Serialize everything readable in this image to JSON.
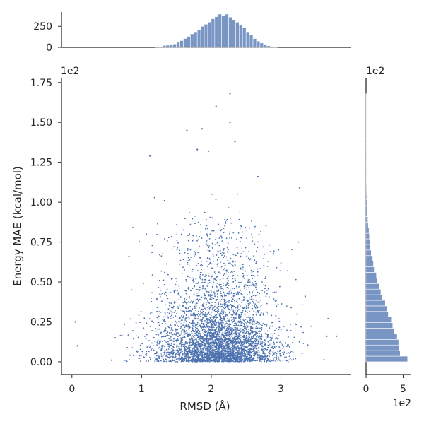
{
  "chart_data": {
    "type": "scatter",
    "subtype": "jointplot-with-marginal-histograms",
    "color": "#4c72b0",
    "xlabel": "RMSD (Å)",
    "ylabel": "Energy MAE (kcal/mol)",
    "xlim": [
      -0.15,
      4.0
    ],
    "ylim": [
      -0.08,
      1.78
    ],
    "y_scale_label": "1e2",
    "xticks": [
      {
        "value": 0,
        "label": "0"
      },
      {
        "value": 1,
        "label": "1"
      },
      {
        "value": 2,
        "label": "2"
      },
      {
        "value": 3,
        "label": "3"
      }
    ],
    "yticks": [
      {
        "value": 0.0,
        "label": "0.00"
      },
      {
        "value": 0.25,
        "label": "0.25"
      },
      {
        "value": 0.5,
        "label": "0.50"
      },
      {
        "value": 0.75,
        "label": "0.75"
      },
      {
        "value": 1.0,
        "label": "1.00"
      },
      {
        "value": 1.25,
        "label": "1.25"
      },
      {
        "value": 1.5,
        "label": "1.50"
      },
      {
        "value": 1.75,
        "label": "1.75"
      }
    ],
    "scatter_core": {
      "x_mean": 2.1,
      "x_std": 0.42,
      "y_typical_range": [
        0.0,
        0.5
      ],
      "approx_point_count": 4500
    },
    "outliers": [
      {
        "x": 0.05,
        "y": 0.25
      },
      {
        "x": 0.08,
        "y": 0.1
      },
      {
        "x": 0.82,
        "y": 0.66
      },
      {
        "x": 1.12,
        "y": 1.29
      },
      {
        "x": 1.65,
        "y": 1.45
      },
      {
        "x": 1.87,
        "y": 1.46
      },
      {
        "x": 2.07,
        "y": 1.6
      },
      {
        "x": 2.27,
        "y": 1.68
      },
      {
        "x": 2.27,
        "y": 1.5
      },
      {
        "x": 2.34,
        "y": 1.38
      },
      {
        "x": 1.8,
        "y": 1.33
      },
      {
        "x": 1.96,
        "y": 1.32
      },
      {
        "x": 3.27,
        "y": 1.09
      },
      {
        "x": 3.66,
        "y": 0.16
      },
      {
        "x": 3.8,
        "y": 0.16
      },
      {
        "x": 2.67,
        "y": 1.16
      },
      {
        "x": 1.33,
        "y": 1.01
      },
      {
        "x": 3.35,
        "y": 0.41
      },
      {
        "x": 0.57,
        "y": 0.01
      },
      {
        "x": 0.62,
        "y": 0.15
      }
    ],
    "top_hist": {
      "yticks": [
        {
          "value": 0,
          "label": "0"
        },
        {
          "value": 250,
          "label": "250"
        }
      ],
      "ylim": [
        0,
        420
      ],
      "bin_edges_start": 1.2,
      "bin_width": 0.05,
      "counts": [
        5,
        10,
        22,
        25,
        28,
        40,
        60,
        80,
        105,
        130,
        160,
        185,
        210,
        250,
        275,
        300,
        340,
        365,
        395,
        375,
        395,
        360,
        330,
        300,
        270,
        230,
        185,
        145,
        105,
        75,
        52,
        34,
        18,
        9,
        4
      ]
    },
    "right_hist": {
      "xticks": [
        {
          "value": 0,
          "label": "0"
        },
        {
          "value": 5,
          "label": "5"
        }
      ],
      "x_scale_label": "1e2",
      "xlim": [
        0,
        6.1
      ],
      "bin_edges_start": 0.0,
      "bin_width": 0.035,
      "counts": [
        5.6,
        4.6,
        4.5,
        4.4,
        4.2,
        3.8,
        3.6,
        3.5,
        3.0,
        2.8,
        2.6,
        2.2,
        2.0,
        1.8,
        1.5,
        1.4,
        1.1,
        1.0,
        0.9,
        0.7,
        0.6,
        0.55,
        0.45,
        0.4,
        0.3,
        0.25,
        0.2,
        0.18,
        0.12,
        0.1,
        0.08,
        0.06,
        0.05,
        0.04,
        0.03,
        0.02,
        0.02,
        0.015,
        0.01,
        0.01,
        0.008,
        0.006,
        0.005,
        0.004,
        0.003,
        0.003,
        0.002,
        0.002
      ]
    }
  }
}
